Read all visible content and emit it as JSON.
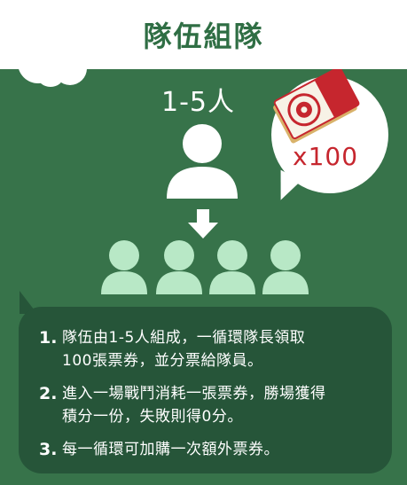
{
  "header": {
    "title": "隊伍組隊"
  },
  "team": {
    "size_label": "1-5人"
  },
  "ticket_badge": {
    "multiplier": "x100"
  },
  "icons": {
    "leader": "person-icon",
    "arrow": "arrow-down-icon",
    "members": "person-icon",
    "ticket": "ticket-icon"
  },
  "colors": {
    "title_green": "#2f6e44",
    "panel_green": "#37734a",
    "box_green": "#265539",
    "member_green": "#b8e8c6",
    "accent_red": "#c6262e"
  },
  "rules": [
    {
      "number": "1.",
      "line1": "隊伍由1-5人組成，一循環隊長領取",
      "line2": "100張票券，並分票給隊員。"
    },
    {
      "number": "2.",
      "line1": "進入一場戰鬥消耗一張票券，勝場獲得",
      "line2": "積分一份，失敗則得0分。"
    },
    {
      "number": "3.",
      "line1": "每一循環可加購一次額外票券。",
      "line2": ""
    }
  ]
}
